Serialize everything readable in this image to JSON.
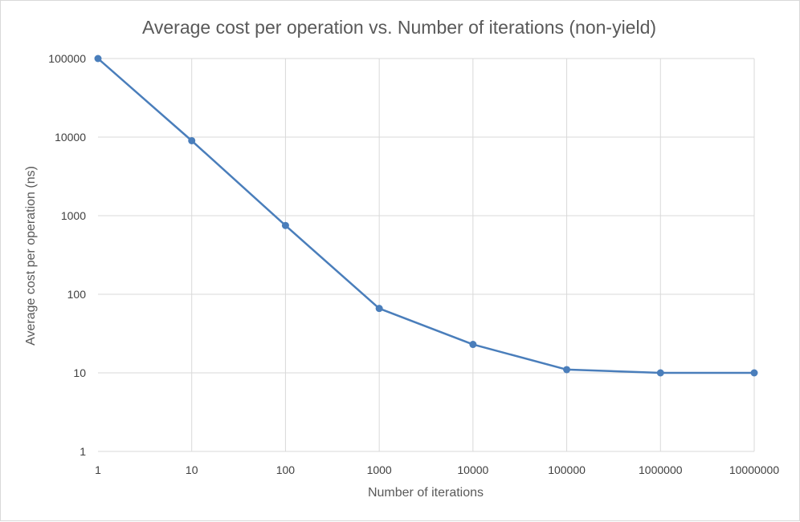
{
  "chart_data": {
    "type": "line",
    "title": "Average cost per operation vs. Number of iterations (non-yield)",
    "xlabel": "Number of iterations",
    "ylabel": "Average cost per operation (ns)",
    "x_scale": "log",
    "y_scale": "log",
    "x_ticks": [
      "1",
      "10",
      "100",
      "1000",
      "10000",
      "100000",
      "1000000",
      "10000000"
    ],
    "y_ticks": [
      "1",
      "10",
      "100",
      "1000",
      "10000",
      "100000"
    ],
    "xlim": [
      1,
      10000000
    ],
    "ylim": [
      1,
      100000
    ],
    "grid": true,
    "legend": "none",
    "series": [
      {
        "color": "#4a7ebb",
        "x": [
          1,
          10,
          100,
          1000,
          10000,
          100000,
          1000000,
          10000000
        ],
        "y": [
          100000,
          9000,
          750,
          66,
          23,
          11,
          10,
          10
        ]
      }
    ]
  }
}
